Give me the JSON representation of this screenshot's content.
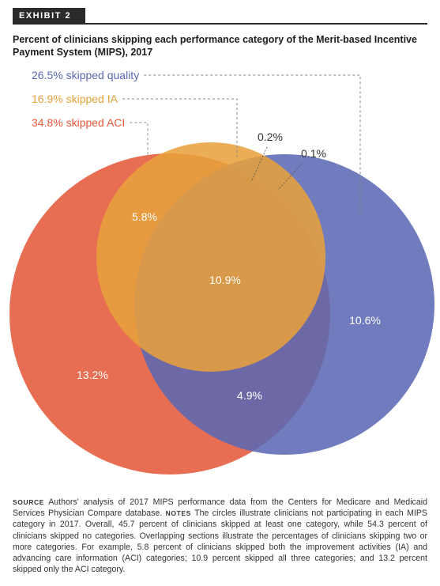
{
  "exhibit_label": "EXHIBIT 2",
  "title": "Percent of clinicians skipping each performance category of the Merit-based Incentive Payment System (MIPS), 2017",
  "chart_data": {
    "type": "venn",
    "title": "Percent of clinicians skipping each performance category of the Merit-based Incentive Payment System (MIPS), 2017",
    "sets": [
      {
        "key": "quality",
        "label": "26.5% skipped quality",
        "total": 26.5,
        "color": "#5b68b3"
      },
      {
        "key": "IA",
        "label": "16.9% skipped IA",
        "total": 16.9,
        "color": "#e8a13c"
      },
      {
        "key": "ACI",
        "label": "34.8% skipped ACI",
        "total": 34.8,
        "color": "#e5583a"
      }
    ],
    "regions": [
      {
        "sets": [
          "ACI"
        ],
        "value": 13.2,
        "label": "13.2%"
      },
      {
        "sets": [
          "quality"
        ],
        "value": 10.6,
        "label": "10.6%"
      },
      {
        "sets": [
          "IA"
        ],
        "value": 0.2,
        "label": "0.2%"
      },
      {
        "sets": [
          "ACI",
          "IA"
        ],
        "value": 5.8,
        "label": "5.8%"
      },
      {
        "sets": [
          "ACI",
          "quality"
        ],
        "value": 4.9,
        "label": "4.9%"
      },
      {
        "sets": [
          "IA",
          "quality"
        ],
        "value": 0.1,
        "label": "0.1%"
      },
      {
        "sets": [
          "ACI",
          "IA",
          "quality"
        ],
        "value": 10.9,
        "label": "10.9%"
      }
    ]
  },
  "footnote": {
    "source_head": "Source",
    "source_text": " Authors' analysis of 2017 MIPS performance data from the Centers for Medicare and Medicaid Services Physician Compare database. ",
    "notes_head": "Notes",
    "notes_text": " The circles illustrate clinicians not participating in each MIPS category in 2017. Overall, 45.7 percent of clinicians skipped at least one category, while 54.3 percent of clinicians skipped no categories. Overlapping sections illustrate the percentages of clinicians skipping two or more categories. For example, 5.8 percent of clinicians skipped both the improvement activities (IA) and advancing care information (ACI) categories; 10.9 percent skipped all three categories; and 13.2 percent skipped only the ACI category."
  }
}
